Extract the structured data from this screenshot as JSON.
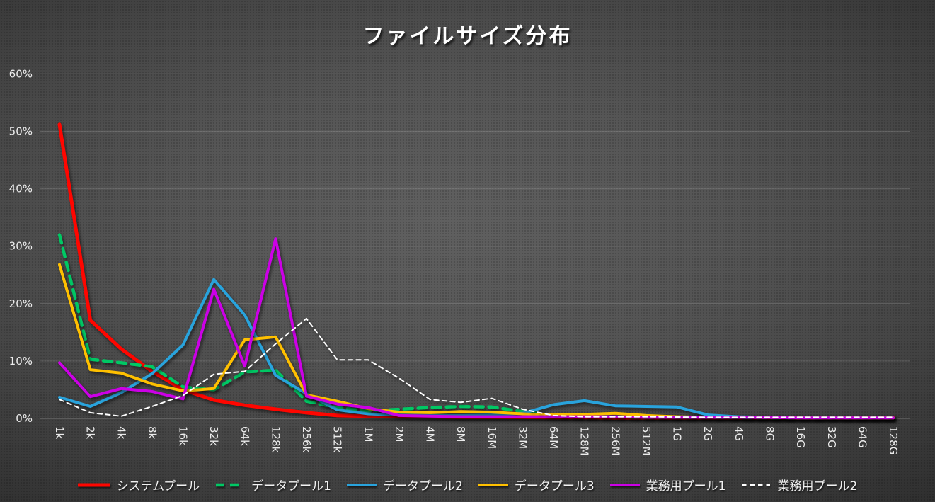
{
  "title": "ファイルサイズ分布",
  "y_axis": {
    "tick_labels": [
      "0%",
      "10%",
      "20%",
      "30%",
      "40%",
      "50%",
      "60%"
    ],
    "min": 0,
    "max": 60,
    "step": 10
  },
  "chart_data": {
    "type": "line",
    "title": "ファイルサイズ分布",
    "xlabel": "",
    "ylabel": "",
    "ylim": [
      0,
      60
    ],
    "grid": "horizontal",
    "legend_position": "bottom",
    "categories": [
      "1k",
      "2k",
      "4k",
      "8k",
      "16k",
      "32k",
      "64k",
      "128k",
      "256k",
      "512k",
      "1M",
      "2M",
      "4M",
      "8M",
      "16M",
      "32M",
      "64M",
      "128M",
      "256M",
      "512M",
      "1G",
      "2G",
      "4G",
      "8G",
      "16G",
      "32G",
      "64G",
      "128G"
    ],
    "series": [
      {
        "name": "システムプール",
        "color": "#FF0600",
        "style": "solid",
        "width": 5,
        "dash": "",
        "values": [
          51.2,
          17.1,
          12.1,
          8.2,
          5.0,
          3.2,
          2.3,
          1.6,
          1.0,
          0.5,
          0.4,
          0.3,
          0.3,
          0.2,
          0.2,
          0.2,
          0.15,
          0.15,
          0.1,
          0.1,
          0.1,
          0.1,
          0.1,
          0.1,
          0.1,
          0.1,
          0.1,
          0.1
        ]
      },
      {
        "name": "データプール1",
        "color": "#00C864",
        "style": "dashed",
        "width": 4.5,
        "dash": "12 8",
        "values": [
          32.0,
          10.3,
          9.7,
          9.0,
          5.5,
          5.0,
          8.1,
          8.4,
          3.0,
          1.9,
          1.3,
          1.6,
          1.9,
          2.1,
          2.0,
          1.2,
          0.5,
          0.3,
          0.3,
          0.2,
          0.2,
          0.2,
          0.15,
          0.1,
          0.1,
          0.1,
          0.1,
          0.1
        ]
      },
      {
        "name": "データプール2",
        "color": "#29A3DC",
        "style": "solid",
        "width": 4,
        "dash": "",
        "values": [
          3.7,
          2.1,
          4.5,
          7.8,
          12.8,
          24.2,
          18.0,
          7.5,
          4.3,
          1.5,
          0.8,
          0.6,
          0.5,
          0.5,
          0.6,
          0.9,
          2.4,
          3.1,
          2.2,
          2.1,
          2.0,
          0.6,
          0.3,
          0.2,
          0.2,
          0.15,
          0.1,
          0.1
        ]
      },
      {
        "name": "データプール3",
        "color": "#FFC000",
        "style": "solid",
        "width": 4,
        "dash": "",
        "values": [
          26.8,
          8.5,
          7.9,
          6.0,
          4.8,
          5.2,
          13.7,
          14.2,
          4.1,
          3.0,
          1.7,
          1.1,
          1.0,
          1.2,
          1.1,
          0.8,
          0.6,
          0.7,
          0.9,
          0.5,
          0.3,
          0.2,
          0.2,
          0.15,
          0.1,
          0.1,
          0.1,
          0.1
        ]
      },
      {
        "name": "業務用プール1",
        "color": "#CC00E6",
        "style": "solid",
        "width": 4,
        "dash": "",
        "values": [
          9.7,
          3.8,
          5.2,
          4.7,
          3.4,
          22.5,
          9.1,
          31.3,
          3.9,
          2.5,
          1.9,
          0.5,
          0.4,
          0.3,
          0.3,
          0.3,
          0.3,
          0.3,
          0.3,
          0.2,
          0.2,
          0.2,
          0.2,
          0.15,
          0.1,
          0.1,
          0.1,
          0.1
        ]
      },
      {
        "name": "業務用プール2",
        "color": "#FFFFFF",
        "style": "dashed",
        "width": 2,
        "dash": "6.5 5",
        "values": [
          3.3,
          1.0,
          0.4,
          2.1,
          4.0,
          7.7,
          8.2,
          13.0,
          17.4,
          10.2,
          10.2,
          7.0,
          3.3,
          2.8,
          3.5,
          1.6,
          0.5,
          0.3,
          0.3,
          0.3,
          0.25,
          0.2,
          0.2,
          0.2,
          0.2,
          0.2,
          0.2,
          0.2
        ]
      }
    ]
  }
}
